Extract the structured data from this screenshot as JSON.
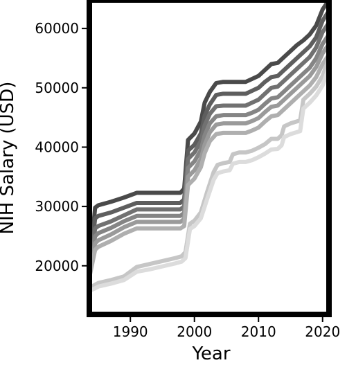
{
  "chart_data": {
    "type": "line",
    "title": "",
    "xlabel": "Year",
    "ylabel": "NIH Salary (USD)",
    "xlim": [
      1983.6,
      2021.0
    ],
    "ylim": [
      11800,
      64800
    ],
    "xticks": [
      1990,
      2000,
      2010,
      2020
    ],
    "yticks": [
      20000,
      30000,
      40000,
      50000,
      60000
    ],
    "xtick_labels": [
      "1990",
      "2000",
      "2010",
      "2020"
    ],
    "ytick_labels": [
      "20000",
      "30000",
      "40000",
      "50000",
      "60000"
    ],
    "grid": false,
    "legend": "none",
    "series": [
      {
        "color": "#4a4a4a",
        "x": [
          1983.6,
          1984.5,
          1985,
          1987,
          1989,
          1991,
          1993,
          1995,
          1997,
          1997.8,
          1998.4,
          1999,
          2000,
          2001,
          2001.6,
          2002.4,
          2003.4,
          2004.5,
          2006,
          2008,
          2009,
          2010,
          2011,
          2012,
          2013,
          2014,
          2015,
          2016,
          2017,
          2018,
          2019,
          2020,
          2021
        ],
        "values": [
          19500,
          29800,
          30200,
          30800,
          31500,
          32300,
          32300,
          32300,
          32300,
          32300,
          33000,
          41200,
          42300,
          44300,
          47500,
          49300,
          50800,
          51000,
          51000,
          51000,
          51500,
          52000,
          53000,
          54000,
          54200,
          55200,
          56200,
          57200,
          58000,
          59000,
          60500,
          63200,
          64800
        ]
      },
      {
        "color": "#5e5e5e",
        "x": [
          1983.6,
          1984.5,
          1985,
          1987,
          1989,
          1991,
          1993,
          1995,
          1997,
          1997.8,
          1998.4,
          1999,
          2000,
          2001,
          2001.6,
          2002.4,
          2003.4,
          2004.5,
          2006,
          2008,
          2009,
          2010,
          2011,
          2012,
          2013,
          2014,
          2015,
          2016,
          2017,
          2018,
          2019,
          2020,
          2021
        ],
        "values": [
          19000,
          28000,
          28400,
          29000,
          29800,
          30600,
          30600,
          30600,
          30600,
          30600,
          31200,
          39400,
          40400,
          42300,
          45300,
          47200,
          48800,
          49000,
          49000,
          49000,
          49500,
          50000,
          51000,
          51800,
          52000,
          53000,
          54000,
          55000,
          56000,
          57000,
          58500,
          61300,
          63000
        ]
      },
      {
        "color": "#717171",
        "x": [
          1983.6,
          1984.5,
          1985,
          1987,
          1989,
          1991,
          1993,
          1995,
          1997,
          1997.8,
          1998.4,
          1999,
          2000,
          2001,
          2001.6,
          2002.4,
          2003.4,
          2004.5,
          2006,
          2008,
          2009,
          2010,
          2011,
          2012,
          2013,
          2014,
          2015,
          2016,
          2017,
          2018,
          2019,
          2020,
          2021
        ],
        "values": [
          18700,
          26300,
          26700,
          27500,
          28500,
          29500,
          29500,
          29500,
          29500,
          29500,
          30000,
          38000,
          39100,
          41000,
          43700,
          45600,
          46900,
          47000,
          47000,
          47000,
          47500,
          48000,
          49000,
          50000,
          50200,
          51200,
          52200,
          53200,
          54200,
          55200,
          56800,
          59400,
          61000
        ]
      },
      {
        "color": "#858585",
        "x": [
          1983.6,
          1984.5,
          1985,
          1987,
          1989,
          1991,
          1993,
          1995,
          1997,
          1997.8,
          1998.4,
          1999,
          2000,
          2001,
          2001.6,
          2002.4,
          2003.4,
          2004.5,
          2006,
          2008,
          2009,
          2010,
          2011,
          2012,
          2013,
          2014,
          2015,
          2016,
          2017,
          2018,
          2019,
          2020,
          2021
        ],
        "values": [
          18500,
          25000,
          25500,
          26400,
          27500,
          28400,
          28400,
          28400,
          28400,
          28400,
          28900,
          36500,
          37600,
          39500,
          42000,
          44000,
          45200,
          45400,
          45400,
          45400,
          45800,
          46300,
          47300,
          48200,
          48400,
          49400,
          50400,
          51400,
          52400,
          53400,
          55000,
          57400,
          59000
        ]
      },
      {
        "color": "#9a9a9a",
        "x": [
          1983.6,
          1984.5,
          1985,
          1987,
          1989,
          1991,
          1993,
          1995,
          1997,
          1997.8,
          1998.4,
          1999,
          2000,
          2001,
          2001.6,
          2002.4,
          2003.4,
          2004.5,
          2006,
          2008,
          2009,
          2010,
          2011,
          2012,
          2013,
          2014,
          2015,
          2016,
          2017,
          2018,
          2019,
          2020,
          2021
        ],
        "values": [
          18200,
          23800,
          24300,
          25300,
          26500,
          27400,
          27400,
          27400,
          27400,
          27400,
          27900,
          35000,
          36100,
          38000,
          40400,
          42500,
          43800,
          44000,
          44000,
          44000,
          44400,
          44900,
          45900,
          46800,
          47000,
          48000,
          49000,
          50000,
          51000,
          52000,
          53500,
          55800,
          57400
        ]
      },
      {
        "color": "#afafaf",
        "x": [
          1983.6,
          1984.5,
          1985,
          1987,
          1989,
          1991,
          1993,
          1995,
          1997,
          1997.8,
          1998.4,
          1999,
          2000,
          2001,
          2001.6,
          2002.4,
          2003.4,
          2004.5,
          2006,
          2008,
          2009,
          2010,
          2011,
          2012,
          2013,
          2014,
          2015,
          2016,
          2017,
          2018,
          2019,
          2020,
          2021
        ],
        "values": [
          18000,
          22700,
          23200,
          24200,
          25400,
          26300,
          26300,
          26300,
          26300,
          26300,
          26700,
          33600,
          34700,
          36600,
          39000,
          41000,
          42200,
          42400,
          42400,
          42400,
          42800,
          43300,
          44300,
          45200,
          45400,
          46400,
          47400,
          48400,
          49400,
          50400,
          51800,
          54000,
          55600
        ]
      },
      {
        "color": "#c6c6c6",
        "x": [
          1983.6,
          1984.5,
          1985,
          1987,
          1989,
          1991,
          1993,
          1995,
          1997,
          1998,
          1998.6,
          1999.3,
          2000,
          2001,
          2002,
          2003,
          2003.6,
          2004.5,
          2005.5,
          2006,
          2007,
          2008,
          2009,
          2010,
          2011,
          2012,
          2013,
          2013.6,
          2014,
          2015,
          2016.5,
          2017,
          2018,
          2019,
          2020,
          2021
        ],
        "values": [
          16300,
          16800,
          17100,
          17600,
          18200,
          19800,
          20300,
          20800,
          21300,
          21600,
          22300,
          27100,
          27600,
          29000,
          32500,
          35800,
          37000,
          37300,
          37500,
          38800,
          39100,
          39100,
          39400,
          39900,
          40500,
          41400,
          41400,
          42000,
          43500,
          44000,
          44500,
          48000,
          49000,
          50200,
          52000,
          55000
        ]
      },
      {
        "color": "#dcdcdc",
        "x": [
          1983.6,
          1984.5,
          1985,
          1987,
          1989,
          1991,
          1993,
          1995,
          1997,
          1998,
          1998.6,
          1999.3,
          2000,
          2001,
          2002,
          2003,
          2003.6,
          2004.5,
          2005.5,
          2006,
          2007,
          2008,
          2009,
          2010,
          2011,
          2012,
          2013,
          2013.6,
          2014,
          2015,
          2016.5,
          2017,
          2018,
          2019,
          2020,
          2021
        ],
        "values": [
          15800,
          16200,
          16500,
          17000,
          17600,
          19000,
          19400,
          19900,
          20400,
          20700,
          21300,
          26200,
          26700,
          28000,
          31300,
          34500,
          35600,
          35900,
          36100,
          37200,
          37500,
          37500,
          37800,
          38300,
          38900,
          39600,
          39700,
          40300,
          41700,
          42200,
          42700,
          46500,
          47500,
          48700,
          50400,
          53500
        ]
      }
    ]
  }
}
